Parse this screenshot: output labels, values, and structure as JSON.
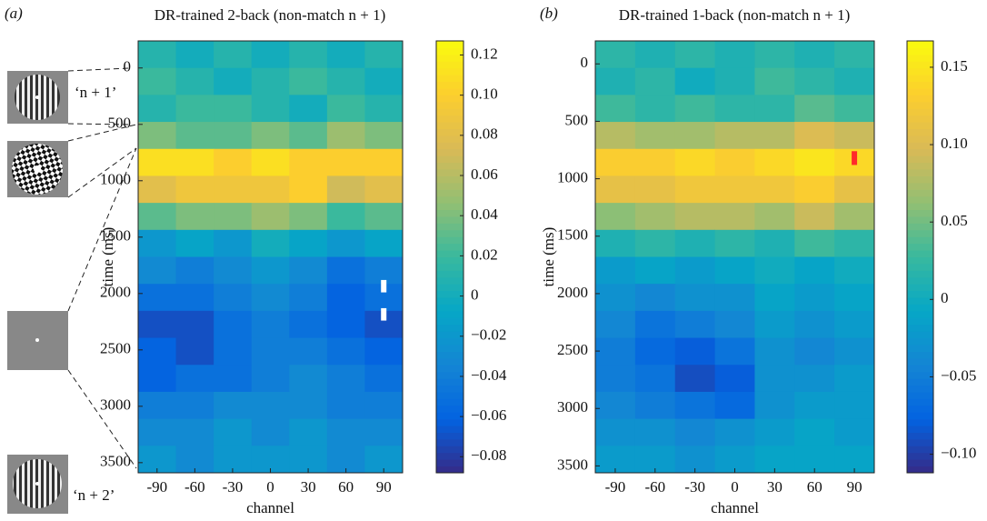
{
  "chart_data": [
    {
      "type": "heatmap",
      "panel_label": "(a)",
      "title": "DR-trained 2-back (non-match n + 1)",
      "xlabel": "channel",
      "ylabel": "time (ms)",
      "x": [
        -90,
        -60,
        -30,
        0,
        30,
        60,
        90
      ],
      "xlim": [
        -105,
        105
      ],
      "xticks": [
        -90,
        -60,
        -30,
        0,
        30,
        60,
        90
      ],
      "ylim": [
        -240,
        3590
      ],
      "yticks": [
        0,
        500,
        1000,
        1500,
        2000,
        2500,
        3000,
        3500
      ],
      "z": [
        [
          0.01,
          0.0,
          0.01,
          0.0,
          0.01,
          0.0,
          0.01
        ],
        [
          0.02,
          0.01,
          0.0,
          0.01,
          0.02,
          0.01,
          0.0
        ],
        [
          0.01,
          0.02,
          0.02,
          0.01,
          0.0,
          0.02,
          0.01
        ],
        [
          0.04,
          0.03,
          0.03,
          0.04,
          0.03,
          0.05,
          0.04
        ],
        [
          0.11,
          0.11,
          0.1,
          0.11,
          0.1,
          0.1,
          0.1
        ],
        [
          0.08,
          0.09,
          0.09,
          0.09,
          0.1,
          0.07,
          0.08
        ],
        [
          0.03,
          0.04,
          0.04,
          0.05,
          0.04,
          0.02,
          0.03
        ],
        [
          -0.02,
          -0.01,
          -0.02,
          0.0,
          -0.01,
          -0.02,
          -0.01
        ],
        [
          -0.03,
          -0.04,
          -0.03,
          -0.02,
          -0.03,
          -0.05,
          -0.04
        ],
        [
          -0.05,
          -0.05,
          -0.04,
          -0.03,
          -0.04,
          -0.06,
          -0.05
        ],
        [
          -0.07,
          -0.07,
          -0.05,
          -0.04,
          -0.05,
          -0.06,
          -0.07
        ],
        [
          -0.06,
          -0.07,
          -0.05,
          -0.04,
          -0.04,
          -0.05,
          -0.06
        ],
        [
          -0.06,
          -0.05,
          -0.05,
          -0.04,
          -0.03,
          -0.04,
          -0.05
        ],
        [
          -0.04,
          -0.04,
          -0.03,
          -0.03,
          -0.03,
          -0.04,
          -0.04
        ],
        [
          -0.03,
          -0.03,
          -0.02,
          -0.03,
          -0.02,
          -0.03,
          -0.03
        ],
        [
          -0.02,
          -0.03,
          -0.02,
          -0.02,
          -0.02,
          -0.03,
          -0.02
        ]
      ],
      "clim": [
        -0.088,
        0.127
      ],
      "cticks": [
        {
          "value": -0.08,
          "label": "−0.08"
        },
        {
          "value": -0.06,
          "label": "−0.06"
        },
        {
          "value": -0.04,
          "label": "−0.04"
        },
        {
          "value": -0.02,
          "label": "−0.02"
        },
        0,
        0.02,
        0.04,
        0.06,
        0.08,
        {
          "value": 0.1,
          "label": "0.10"
        },
        0.12
      ],
      "markers": [
        {
          "x": 90,
          "y": [
            1880,
            1990
          ],
          "color": "#ffffff"
        },
        {
          "x": 90,
          "y": [
            2130,
            2240
          ],
          "color": "#ffffff"
        }
      ],
      "annotations": [
        "‘n + 1’",
        "‘n + 2’"
      ]
    },
    {
      "type": "heatmap",
      "panel_label": "(b)",
      "title": "DR-trained 1-back (non-match n + 1)",
      "xlabel": "channel",
      "ylabel": "time (ms)",
      "x": [
        -90,
        -60,
        -30,
        0,
        30,
        60,
        90
      ],
      "xlim": [
        -105,
        105
      ],
      "xticks": [
        -90,
        -60,
        -30,
        0,
        30,
        60,
        90
      ],
      "ylim": [
        -200,
        3560
      ],
      "yticks": [
        0,
        500,
        1000,
        1500,
        2000,
        2500,
        3000,
        3500
      ],
      "z": [
        [
          0.02,
          0.01,
          0.02,
          0.01,
          0.02,
          0.01,
          0.02
        ],
        [
          0.01,
          0.02,
          0.0,
          0.01,
          0.03,
          0.02,
          0.01
        ],
        [
          0.03,
          0.02,
          0.03,
          0.02,
          0.02,
          0.04,
          0.03
        ],
        [
          0.08,
          0.07,
          0.07,
          0.08,
          0.08,
          0.1,
          0.09
        ],
        [
          0.13,
          0.13,
          0.14,
          0.13,
          0.14,
          0.15,
          0.14
        ],
        [
          0.11,
          0.11,
          0.12,
          0.12,
          0.12,
          0.13,
          0.11
        ],
        [
          0.06,
          0.07,
          0.08,
          0.08,
          0.07,
          0.09,
          0.07
        ],
        [
          0.01,
          0.02,
          0.01,
          0.02,
          0.01,
          0.03,
          0.02
        ],
        [
          -0.02,
          -0.01,
          -0.02,
          -0.01,
          0.0,
          -0.01,
          0.0
        ],
        [
          -0.03,
          -0.04,
          -0.03,
          -0.03,
          -0.01,
          -0.02,
          -0.01
        ],
        [
          -0.04,
          -0.06,
          -0.05,
          -0.04,
          -0.02,
          -0.03,
          -0.02
        ],
        [
          -0.05,
          -0.07,
          -0.08,
          -0.06,
          -0.03,
          -0.04,
          -0.03
        ],
        [
          -0.05,
          -0.06,
          -0.09,
          -0.08,
          -0.03,
          -0.03,
          -0.02
        ],
        [
          -0.04,
          -0.05,
          -0.06,
          -0.07,
          -0.03,
          -0.02,
          -0.02
        ],
        [
          -0.03,
          -0.03,
          -0.04,
          -0.03,
          -0.02,
          -0.01,
          -0.02
        ],
        [
          -0.02,
          -0.02,
          -0.03,
          -0.02,
          -0.01,
          -0.01,
          -0.01
        ]
      ],
      "clim": [
        -0.112,
        0.167
      ],
      "cticks": [
        {
          "value": -0.1,
          "label": "−0.10"
        },
        {
          "value": -0.05,
          "label": "−0.05"
        },
        0,
        0.05,
        {
          "value": 0.1,
          "label": "0.10"
        },
        0.15
      ],
      "markers": [
        {
          "x": 90,
          "y": [
            760,
            880
          ],
          "color": "#ff2a2a"
        }
      ]
    }
  ]
}
